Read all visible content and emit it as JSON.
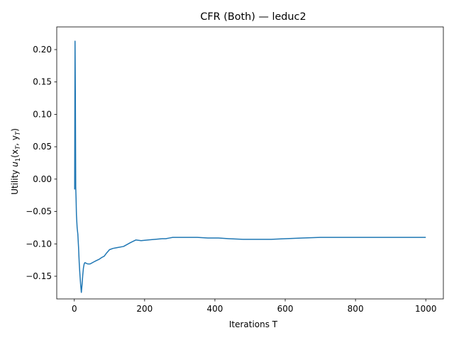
{
  "chart_data": {
    "type": "line",
    "title": "CFR (Both) — leduc2",
    "xlabel": "Iterations T",
    "ylabel_prefix": "Utility ",
    "ylabel_math_u": "u",
    "ylabel_math_sub1": "1",
    "ylabel_math_args": "(x",
    "ylabel_math_subT1": "T",
    "ylabel_math_mid": ", y",
    "ylabel_math_subT2": "T",
    "ylabel_math_close": ")",
    "xlim": [
      -50,
      1050
    ],
    "ylim": [
      -0.185,
      0.235
    ],
    "x_ticks": [
      0,
      200,
      400,
      600,
      800,
      1000
    ],
    "x_tick_labels": [
      "0",
      "200",
      "400",
      "600",
      "800",
      "1000"
    ],
    "y_ticks": [
      -0.15,
      -0.1,
      -0.05,
      0.0,
      0.05,
      0.1,
      0.15,
      0.2
    ],
    "y_tick_labels": [
      "−0.15",
      "−0.10",
      "−0.05",
      "0.00",
      "0.05",
      "0.10",
      "0.15",
      "0.20"
    ],
    "grid": false,
    "line_color": "#1f77b4",
    "series": [
      {
        "x": [
          1,
          2,
          3,
          4,
          5,
          6,
          8,
          10,
          12,
          14,
          16,
          18,
          20,
          22,
          24,
          26,
          28,
          30,
          34,
          38,
          45,
          55,
          62,
          70,
          78,
          85,
          92,
          100,
          110,
          120,
          140,
          160,
          175,
          190,
          210,
          230,
          250,
          260,
          270,
          280,
          300,
          320,
          350,
          380,
          410,
          440,
          480,
          520,
          560,
          600,
          650,
          700,
          720,
          760,
          800,
          850,
          900,
          950,
          1000
        ],
        "y": [
          -0.016,
          0.213,
          0.13,
          -0.012,
          -0.03,
          -0.055,
          -0.075,
          -0.085,
          -0.105,
          -0.13,
          -0.148,
          -0.163,
          -0.175,
          -0.163,
          -0.148,
          -0.137,
          -0.131,
          -0.129,
          -0.13,
          -0.131,
          -0.131,
          -0.128,
          -0.126,
          -0.124,
          -0.121,
          -0.119,
          -0.114,
          -0.109,
          -0.107,
          -0.106,
          -0.104,
          -0.098,
          -0.094,
          -0.095,
          -0.094,
          -0.093,
          -0.092,
          -0.092,
          -0.091,
          -0.09,
          -0.09,
          -0.09,
          -0.09,
          -0.091,
          -0.091,
          -0.092,
          -0.093,
          -0.093,
          -0.093,
          -0.092,
          -0.091,
          -0.09,
          -0.09,
          -0.09,
          -0.09,
          -0.09,
          -0.09,
          -0.09,
          -0.09
        ]
      }
    ]
  }
}
